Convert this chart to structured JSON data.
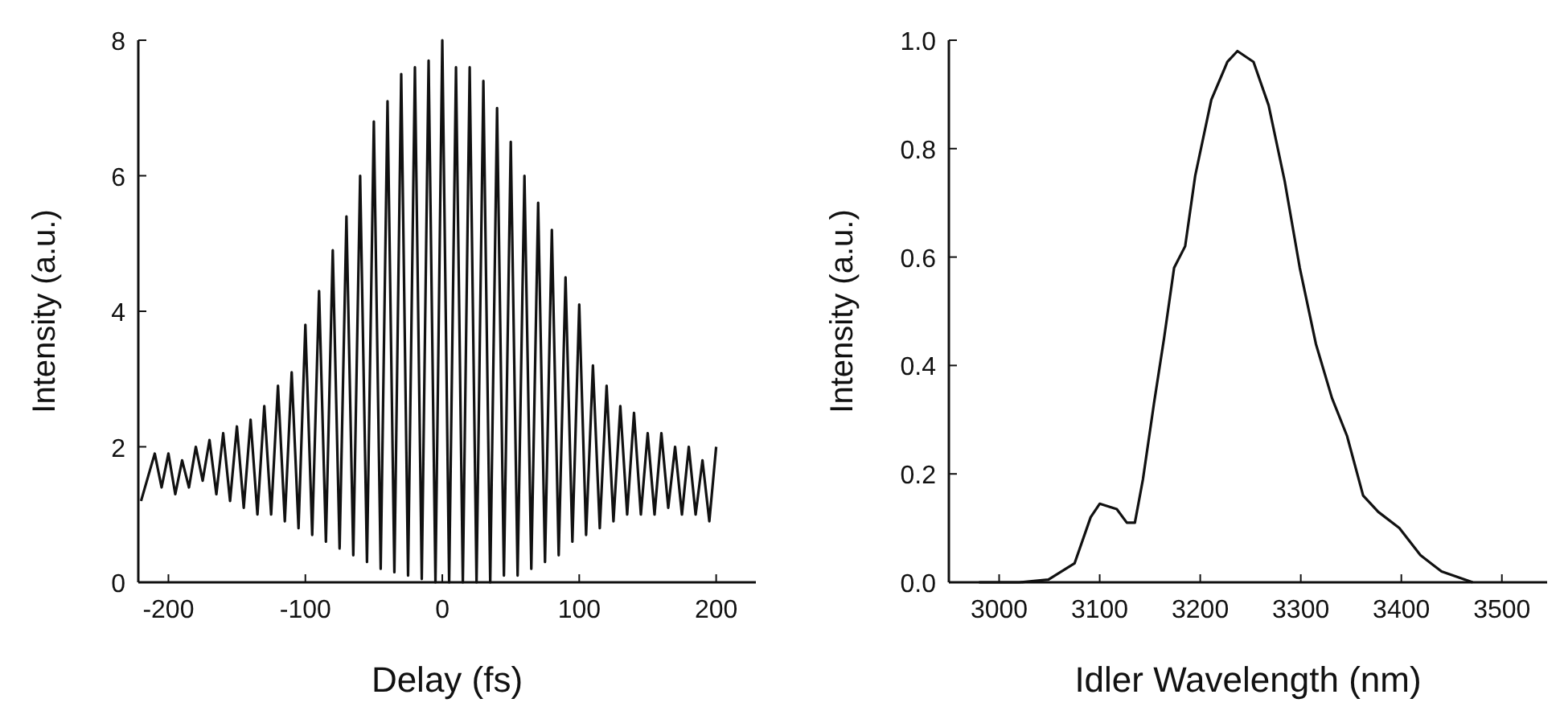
{
  "chart_data": [
    {
      "type": "line",
      "xlabel": "Delay (fs)",
      "ylabel": "Intensity (a.u.)",
      "xlim": [
        -222,
        229
      ],
      "ylim": [
        0,
        8
      ],
      "xticks": [
        -200,
        -100,
        0,
        100,
        200
      ],
      "yticks": [
        0,
        2,
        4,
        6,
        8
      ],
      "grid": false,
      "marker": "none",
      "line_style": "solid",
      "series": [
        {
          "color": "#111111",
          "x": [
            -220,
            -210,
            -205,
            -200,
            -195,
            -190,
            -185,
            -180,
            -175,
            -170,
            -165,
            -160,
            -155,
            -150,
            -145,
            -140,
            -135,
            -130,
            -125,
            -120,
            -115,
            -110,
            -105,
            -100,
            -95,
            -90,
            -85,
            -80,
            -75,
            -70,
            -65,
            -60,
            -55,
            -50,
            -45,
            -40,
            -35,
            -30,
            -25,
            -20,
            -15,
            -10,
            -5,
            0,
            5,
            10,
            15,
            20,
            25,
            30,
            35,
            40,
            45,
            50,
            55,
            60,
            65,
            70,
            75,
            80,
            85,
            90,
            95,
            100,
            105,
            110,
            115,
            120,
            125,
            130,
            135,
            140,
            145,
            150,
            155,
            160,
            165,
            170,
            175,
            180,
            185,
            190,
            195,
            200
          ],
          "values": [
            1.2,
            1.9,
            1.4,
            1.9,
            1.3,
            1.8,
            1.4,
            2.0,
            1.5,
            2.1,
            1.3,
            2.2,
            1.2,
            2.3,
            1.1,
            2.4,
            1.0,
            2.6,
            1.0,
            2.9,
            0.9,
            3.1,
            0.8,
            3.8,
            0.7,
            4.3,
            0.6,
            4.9,
            0.5,
            5.4,
            0.4,
            6.0,
            0.3,
            6.8,
            0.2,
            7.1,
            0.15,
            7.5,
            0.1,
            7.6,
            0.05,
            7.7,
            0.0,
            8.0,
            0.0,
            7.6,
            0.0,
            7.6,
            0.0,
            7.4,
            0.0,
            7.0,
            0.1,
            6.5,
            0.1,
            6.0,
            0.2,
            5.6,
            0.3,
            5.2,
            0.4,
            4.5,
            0.6,
            4.1,
            0.7,
            3.2,
            0.8,
            2.9,
            0.9,
            2.6,
            1.0,
            2.5,
            1.0,
            2.2,
            1.0,
            2.2,
            1.1,
            2.0,
            1.0,
            2.0,
            1.0,
            1.8,
            0.9,
            2.0
          ]
        }
      ]
    },
    {
      "type": "line",
      "xlabel": "Idler Wavelength (nm)",
      "ylabel": "Intensity (a.u.)",
      "xlim": [
        2950,
        3545
      ],
      "ylim": [
        0,
        1
      ],
      "xticks": [
        3000,
        3100,
        3200,
        3300,
        3400,
        3500
      ],
      "yticks": [
        {
          "value": 0,
          "label": "0.0"
        },
        {
          "value": 0.2,
          "label": "0.2"
        },
        {
          "value": 0.4,
          "label": "0.4"
        },
        {
          "value": 0.6,
          "label": "0.6"
        },
        {
          "value": 0.8,
          "label": "0.8"
        },
        {
          "value": 1,
          "label": "1.0"
        }
      ],
      "grid": false,
      "marker": "none",
      "line_style": "solid",
      "series": [
        {
          "color": "#111111",
          "x": [
            2980,
            3020,
            3049,
            3075,
            3091,
            3100,
            3117,
            3127,
            3135,
            3143,
            3154,
            3164,
            3174,
            3185,
            3195,
            3211,
            3227,
            3237,
            3253,
            3268,
            3284,
            3299,
            3315,
            3331,
            3346,
            3362,
            3377,
            3398,
            3419,
            3440,
            3471
          ],
          "values": [
            0,
            0,
            0.005,
            0.035,
            0.12,
            0.145,
            0.135,
            0.11,
            0.11,
            0.19,
            0.33,
            0.45,
            0.58,
            0.62,
            0.75,
            0.89,
            0.96,
            0.98,
            0.96,
            0.88,
            0.74,
            0.58,
            0.44,
            0.34,
            0.27,
            0.16,
            0.13,
            0.1,
            0.05,
            0.02,
            0
          ]
        }
      ]
    }
  ]
}
